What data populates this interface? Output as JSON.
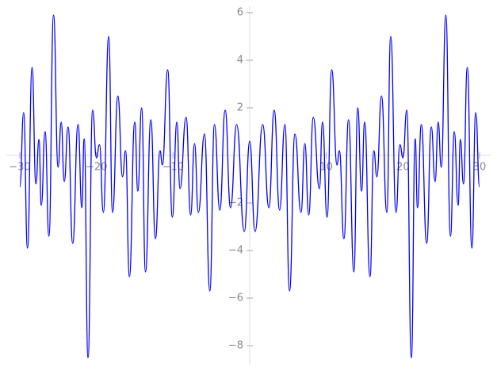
{
  "chart_data": {
    "type": "line",
    "x": [
      -30,
      -29.5,
      -29,
      -28.4,
      -27.9,
      -27.5,
      -27.2,
      -26.7,
      -26.2,
      -25.6,
      -25,
      -24.6,
      -24.2,
      -23.7,
      -23.1,
      -22.4,
      -21.9,
      -21.6,
      -21.1,
      -20.5,
      -20,
      -19.6,
      -19.1,
      -18.4,
      -17.9,
      -17.2,
      -16.6,
      -16.2,
      -15.7,
      -15,
      -14.6,
      -14.1,
      -13.6,
      -12.9,
      -12.3,
      -11.7,
      -11.4,
      -10.7,
      -10.1,
      -9.5,
      -9.1,
      -8.3,
      -7.7,
      -7.2,
      -6.7,
      -5.9,
      -5.2,
      -4.6,
      -3.9,
      -3.2,
      -2.5,
      -1.7,
      -0.7,
      0,
      0.7,
      1.7,
      2.5,
      3.2,
      3.9,
      4.6,
      5.2,
      5.9,
      6.7,
      7.2,
      7.7,
      8.3,
      9.1,
      9.5,
      10.1,
      10.7,
      11.4,
      11.7,
      12.3,
      12.9,
      13.6,
      14.1,
      14.6,
      15,
      15.7,
      16.2,
      16.6,
      17.2,
      17.9,
      18.4,
      19.1,
      19.6,
      20,
      20.5,
      21.1,
      21.6,
      21.9,
      22.4,
      23.1,
      23.7,
      24.2,
      24.6,
      25,
      25.6,
      26.2,
      26.7,
      27.2,
      27.5,
      27.9,
      28.4,
      29,
      29.5,
      30
    ],
    "series": [
      {
        "color": "#0000ff",
        "values": [
          -1.33,
          1.8,
          -3.9,
          3.7,
          -1.2,
          0.67,
          -2.1,
          1.0,
          -3.4,
          5.9,
          -0.5,
          1.4,
          -1.1,
          1.2,
          -3.7,
          1.3,
          -2.2,
          0.7,
          -8.5,
          1.9,
          -0.1,
          0.45,
          -2.4,
          5.0,
          -2.4,
          2.5,
          -0.9,
          0.2,
          -5.1,
          1.4,
          -1.5,
          2.0,
          -4.9,
          1.5,
          -3.5,
          0.2,
          -0.4,
          3.6,
          -2.6,
          1.4,
          -1.4,
          1.6,
          -2.5,
          0.5,
          -2.4,
          0.9,
          -5.7,
          1.3,
          -2.3,
          1.9,
          -2.2,
          1.3,
          -3.2,
          0.6,
          -3.2,
          1.3,
          -2.2,
          1.9,
          -2.3,
          1.3,
          -5.7,
          0.9,
          -2.4,
          0.5,
          -2.5,
          1.6,
          -1.4,
          1.4,
          -2.6,
          3.6,
          -0.4,
          0.2,
          -3.5,
          1.5,
          -4.9,
          2.0,
          -1.5,
          1.4,
          -5.1,
          0.2,
          -0.9,
          2.5,
          -2.4,
          5.0,
          -2.4,
          0.45,
          -0.1,
          1.9,
          -8.5,
          0.7,
          -2.2,
          1.3,
          -3.7,
          1.2,
          -1.1,
          1.4,
          -0.5,
          5.9,
          -3.4,
          1.0,
          -2.1,
          0.67,
          -1.2,
          3.7,
          -3.9,
          1.8,
          -1.33
        ]
      }
    ],
    "xlim": [
      -30,
      30
    ],
    "ylim": [
      -8.5,
      6
    ],
    "xticks": [
      {
        "value": -30,
        "label": "−30"
      },
      {
        "value": -20,
        "label": "−20"
      },
      {
        "value": -10,
        "label": "−10"
      },
      10,
      20,
      30
    ],
    "yticks": [
      {
        "value": -8,
        "label": "−8"
      },
      {
        "value": -6,
        "label": "−6"
      },
      {
        "value": -4,
        "label": "−4"
      },
      {
        "value": -2,
        "label": "−2"
      },
      2,
      4,
      6
    ]
  }
}
